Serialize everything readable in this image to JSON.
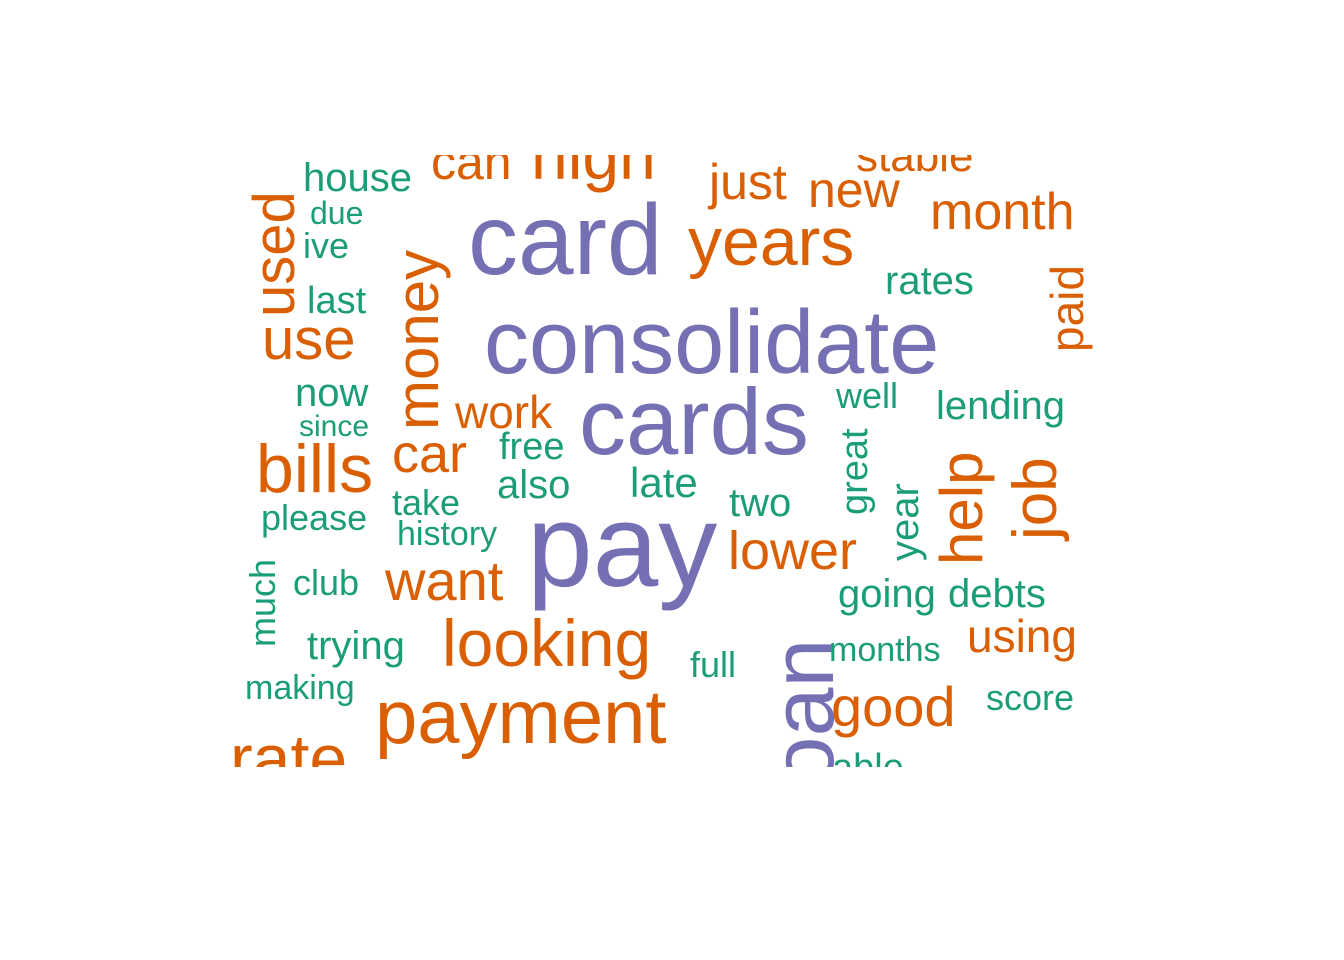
{
  "colors": {
    "top": "#7570b3",
    "mid": "#d95f02",
    "low": "#1b9e77",
    "background": "#ffffff"
  },
  "words": {
    "consolidate": "consolidate",
    "pay": "pay",
    "card": "card",
    "cards": "cards",
    "loan": "loan",
    "payment": "payment",
    "years": "years",
    "looking": "looking",
    "money": "money",
    "bills": "bills",
    "used": "used",
    "high": "high",
    "rate": "rate",
    "job": "job",
    "help": "help",
    "use": "use",
    "want": "want",
    "lower": "lower",
    "month": "month",
    "new": "new",
    "good": "good",
    "car": "car",
    "just": "just",
    "can": "can",
    "work": "work",
    "using": "using",
    "paid": "paid",
    "stable": "stable",
    "house": "house",
    "rates": "rates",
    "lending": "lending",
    "debts": "debts",
    "late": "late",
    "two": "two",
    "also": "also",
    "now": "now",
    "year": "year",
    "going": "going",
    "trying": "trying",
    "free": "free",
    "last": "last",
    "history": "history",
    "great": "great",
    "well": "well",
    "please": "please",
    "take": "take",
    "much": "much",
    "club": "club",
    "months": "months",
    "full": "full",
    "score": "score",
    "making": "making",
    "ive": "ive",
    "due": "due",
    "since": "since",
    "able": "able"
  }
}
